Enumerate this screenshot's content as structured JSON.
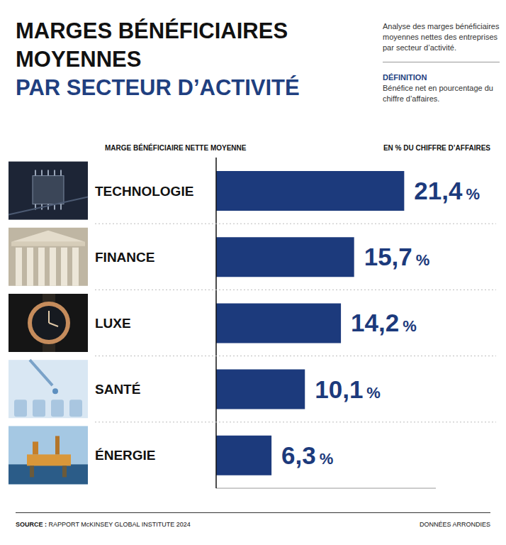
{
  "chart_data": {
    "type": "bar",
    "orientation": "horizontal",
    "title": "MARGES BÉNÉFICIAIRES MOYENNES",
    "subtitle": "PAR SECTEUR D’ACTIVITÉ",
    "ylabel": "MARGE BÉNÉFICIAIRE NETTE MOYENNE",
    "xlabel": "EN % DU CHIFFRE D’AFFAIRES",
    "annotations": {
      "description": "Analyse des marges bénéficiaires moyennes nettes des entreprises par secteur d’activité.",
      "definition_label": "DÉFINITION",
      "definition": "Bénéfice net en pourcentage du chiffre d’affaires.",
      "source_label": "SOURCE :",
      "source": "RAPPORT McKINSEY GLOBAL INSTITUTE 2024",
      "note": "DONNÉES ARRONDIES"
    },
    "categories": [
      "TECHNOLOGIE",
      "FINANCE",
      "LUXE",
      "SANTÉ",
      "ÉNERGIE"
    ],
    "values": [
      21.4,
      15.7,
      14.2,
      10.1,
      6.3
    ],
    "value_labels": [
      "21,4 %",
      "15,7 %",
      "14,2 %",
      "10,1 %",
      "6,3 %"
    ],
    "color": "#1c3a7c",
    "xlim": [
      0,
      25
    ],
    "data_labels": true,
    "tick_labels": false,
    "grid": false
  }
}
